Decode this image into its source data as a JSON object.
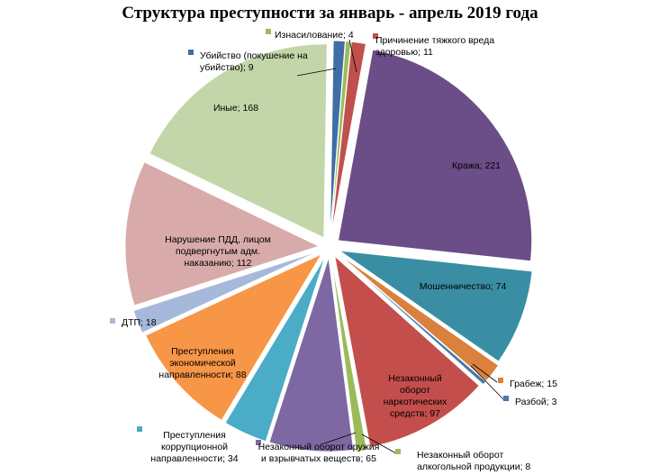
{
  "chart_data": {
    "type": "pie",
    "title": "Структура  преступности  за январь  - апрель 2019 года",
    "slices": [
      {
        "label": "Причинение тяжкого вреда здоровью",
        "text": [
          "Причинение тяжкого вреда",
          "здоровью; 11"
        ],
        "value": 11,
        "color": "#c0504d"
      },
      {
        "label": "Кража",
        "text": [
          "Кража; 221"
        ],
        "value": 221,
        "color": "#6b4d87"
      },
      {
        "label": "Мошенничество",
        "text": [
          "Мошенничество; 74"
        ],
        "value": 74,
        "color": "#3a8ea3"
      },
      {
        "label": "Грабеж",
        "text": [
          "Грабеж; 15"
        ],
        "value": 15,
        "color": "#d9813d"
      },
      {
        "label": "Разбой",
        "text": [
          "Разбой; 3"
        ],
        "value": 3,
        "color": "#4a78aa"
      },
      {
        "label": "Незаконный оборот наркотических средств",
        "text": [
          "Незаконный",
          "оборот",
          "наркотических",
          "средств; 97"
        ],
        "value": 97,
        "color": "#c44e4b"
      },
      {
        "label": "Незаконный оборот алкогольной продукции",
        "text": [
          "Незаконный оборот",
          "алкогольной продукции; 8"
        ],
        "value": 8,
        "color": "#9bbb59"
      },
      {
        "label": "Незаконный оборот оружия и взрывчатых веществ",
        "text": [
          "Незаконный оборот оружия",
          "и взрывчатых веществ; 65"
        ],
        "value": 65,
        "color": "#7e68a3"
      },
      {
        "label": "Преступления коррупционной направленности",
        "text": [
          "Преступления",
          "коррупционной",
          "направленности; 34"
        ],
        "value": 34,
        "color": "#4aacc6"
      },
      {
        "label": "Преступления экономической направленности",
        "text": [
          "Преступления",
          "экономической",
          "направленности; 88"
        ],
        "value": 88,
        "color": "#f79646"
      },
      {
        "label": "ДТП",
        "text": [
          "ДТП;  18"
        ],
        "value": 18,
        "color": "#a6b9db"
      },
      {
        "label": "Нарушение ПДД, лицом подвергнутым адм. наказанию",
        "text": [
          "Нарушение ПДД, лицом",
          "подвергнутым  адм.",
          "наказанию; 112"
        ],
        "value": 112,
        "color": "#d9aaaa"
      },
      {
        "label": "Иные",
        "text": [
          "Иные; 168"
        ],
        "value": 168,
        "color": "#c3d6a9"
      },
      {
        "label": "Убийство (покушение на убийство)",
        "text": [
          "Убийство (покушение на",
          "убийство); 9"
        ],
        "value": 9,
        "color": "#3f6ea5"
      },
      {
        "label": "Изнасилование",
        "text": [
          "Изнасилование; 4"
        ],
        "value": 4,
        "color": "#9bbb59"
      }
    ]
  }
}
